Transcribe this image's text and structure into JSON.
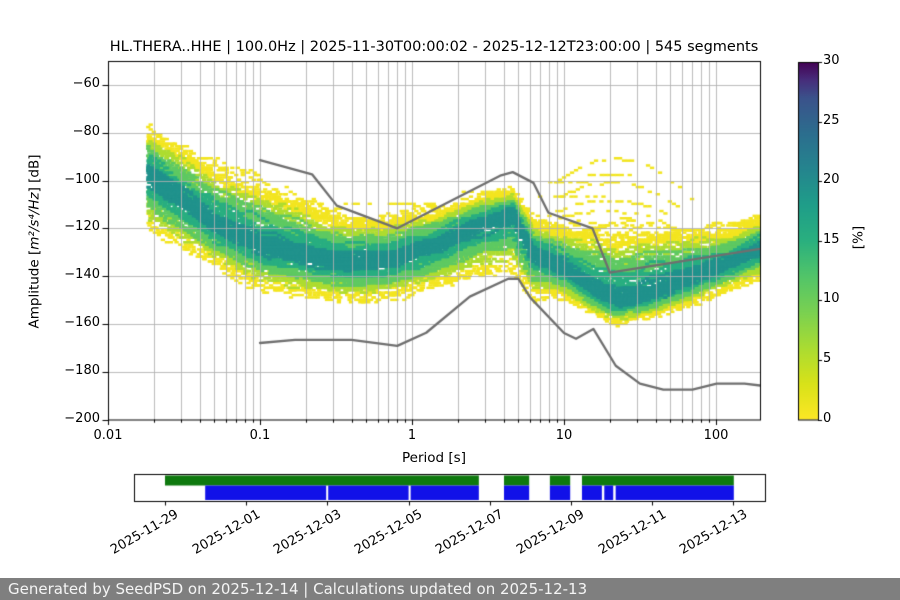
{
  "chart_data": {
    "type": "heatmap",
    "title": "HL.THERA..HHE | 100.0Hz | 2025-11-30T00:00:02 - 2025-12-12T23:00:00 | 545 segments",
    "xlabel": "Period [s]",
    "ylabel": {
      "prefix": "Amplitude [",
      "math": "m²/s⁴/Hz",
      "suffix": "] [dB]"
    },
    "xscale": "log",
    "xlim": [
      0.01,
      195
    ],
    "ylim": [
      -200,
      -50
    ],
    "grid": true,
    "x_ticks": [
      {
        "label": "0.01",
        "logp": -2
      },
      {
        "label": "0.1",
        "logp": -1
      },
      {
        "label": "1",
        "logp": 0
      },
      {
        "label": "10",
        "logp": 1
      },
      {
        "label": "100",
        "logp": 2
      }
    ],
    "y_ticks": [
      {
        "label": "−60",
        "db": -60
      },
      {
        "label": "−80",
        "db": -80
      },
      {
        "label": "−100",
        "db": -100
      },
      {
        "label": "−120",
        "db": -120
      },
      {
        "label": "−140",
        "db": -140
      },
      {
        "label": "−160",
        "db": -160
      },
      {
        "label": "−180",
        "db": -180
      },
      {
        "label": "−200",
        "db": -200
      }
    ],
    "colorbar": {
      "label": "[%]",
      "min": 0,
      "max": 30,
      "ticks": [
        0,
        5,
        10,
        15,
        20,
        25,
        30
      ],
      "cmap": "viridis_r",
      "stops": [
        [
          0.0,
          "#fde725"
        ],
        [
          0.1,
          "#d8e219"
        ],
        [
          0.2,
          "#aadc32"
        ],
        [
          0.3,
          "#7ad151"
        ],
        [
          0.4,
          "#52c569"
        ],
        [
          0.5,
          "#2ab07f"
        ],
        [
          0.6,
          "#1f9e89"
        ],
        [
          0.7,
          "#25858e"
        ],
        [
          0.8,
          "#2c6e8e"
        ],
        [
          0.9,
          "#3b528b"
        ],
        [
          0.95,
          "#472d7b"
        ],
        [
          1.0,
          "#440154"
        ]
      ]
    },
    "ppsd_distribution": {
      "logp": [
        -1.75,
        -1.5,
        -1.3,
        -1.0,
        -0.72,
        -0.45,
        -0.2,
        0.0,
        0.2,
        0.45,
        0.65,
        0.78,
        0.9,
        1.0,
        1.18,
        1.33,
        1.55,
        1.8,
        2.05,
        2.29
      ],
      "mode_db": [
        -97,
        -109,
        -118.5,
        -127,
        -131,
        -134,
        -133.5,
        -129.5,
        -125,
        -117.5,
        -113.5,
        -130,
        -134,
        -137,
        -145,
        -150,
        -147,
        -141,
        -134.5,
        -128.5
      ],
      "sigma_above": [
        13,
        15,
        17,
        18,
        15,
        13,
        12,
        11,
        9.5,
        8,
        7,
        10,
        11,
        12,
        17,
        20,
        19,
        14,
        10,
        9
      ],
      "sigma_below": [
        15,
        13,
        11,
        12,
        11,
        10,
        10.5,
        11,
        12,
        14,
        15,
        12,
        9,
        8,
        7,
        6.5,
        6.5,
        7,
        7.5,
        7.5
      ],
      "peak_percent": [
        13,
        11,
        11,
        10,
        10,
        10,
        11,
        11,
        12,
        14,
        15,
        13,
        12,
        11,
        10,
        9,
        8,
        9,
        11,
        13
      ]
    },
    "outlier_arcs": [
      {
        "center_logp": 1.322,
        "half_width": 0.52,
        "peak_db": -90.5,
        "base_db": -108.5
      },
      {
        "center_logp": 1.3,
        "half_width": 0.46,
        "peak_db": -100.5,
        "base_db": -111.5
      },
      {
        "center_logp": 1.29,
        "half_width": 0.4,
        "peak_db": -108.0,
        "base_db": -114.0
      },
      {
        "center_logp": 1.27,
        "half_width": 0.36,
        "peak_db": -112.5,
        "base_db": -116.0
      }
    ],
    "outlier_streaks": [
      {
        "db": -100.5,
        "logp_start": 0.87,
        "logp_end": 1.15
      },
      {
        "db": -106.5,
        "logp_start": 0.93,
        "logp_end": 1.25
      },
      {
        "db": -109.0,
        "logp_start": -0.45,
        "logp_end": 0.13
      },
      {
        "db": -104.5,
        "logp_start": 0.3,
        "logp_end": 0.52
      },
      {
        "db": -97.0,
        "logp_start": 1.05,
        "logp_end": 1.45
      }
    ],
    "noise_models": {
      "color": "#6f6f6f",
      "nhnm": {
        "periods": [
          0.1,
          0.22,
          0.32,
          0.8,
          3.8,
          4.6,
          6.3,
          7.9,
          15.4,
          20.0,
          354.8
        ],
        "db": [
          -91.5,
          -97.4,
          -110.5,
          -120.0,
          -98.0,
          -96.5,
          -101.0,
          -113.5,
          -120.0,
          -138.5,
          -126.0
        ]
      },
      "nlnm": {
        "periods": [
          0.1,
          0.17,
          0.4,
          0.8,
          1.24,
          2.4,
          4.3,
          5.0,
          6.0,
          10.0,
          12.0,
          15.6,
          21.9,
          31.6,
          45.0,
          70.0,
          101.0,
          154.0,
          328.0
        ],
        "db": [
          -168.0,
          -166.7,
          -166.7,
          -169.2,
          -163.7,
          -148.6,
          -141.1,
          -141.1,
          -149.0,
          -163.8,
          -166.2,
          -162.1,
          -177.5,
          -185.0,
          -187.5,
          -187.5,
          -185.0,
          -185.0,
          -187.5
        ]
      }
    },
    "availability_timeline": {
      "tick_labels": [
        "2025-11-29",
        "2025-12-01",
        "2025-12-03",
        "2025-12-05",
        "2025-12-07",
        "2025-12-09",
        "2025-12-11",
        "2025-12-13"
      ],
      "tick_days": [
        0,
        2,
        4,
        6,
        8,
        10,
        12,
        14
      ],
      "axis_day_range": [
        -0.76,
        14.78
      ],
      "green_color": "#0e790e",
      "blue_color": "#1111e8",
      "green_segments_days": [
        [
          0.0,
          7.73
        ],
        [
          8.35,
          8.97
        ],
        [
          9.48,
          9.98
        ],
        [
          10.27,
          14.01
        ]
      ],
      "blue_segments_days": [
        [
          0.99,
          3.97
        ],
        [
          4.02,
          6.0
        ],
        [
          6.05,
          7.73
        ],
        [
          8.35,
          8.97
        ],
        [
          9.48,
          9.98
        ],
        [
          10.27,
          10.76
        ],
        [
          10.82,
          11.04
        ],
        [
          11.1,
          14.01
        ]
      ]
    }
  },
  "footer": {
    "text": "Generated by SeedPSD on 2025-12-14 | Calculations updated on 2025-12-13",
    "bg": "#7f7f7f",
    "fg": "#f5f5f5"
  }
}
